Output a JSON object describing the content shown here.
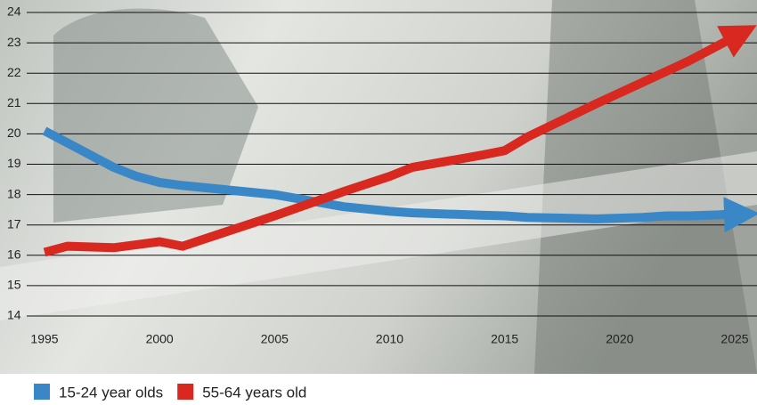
{
  "chart_data": {
    "type": "line",
    "x": [
      1995,
      1996,
      1998,
      1999,
      2000,
      2001,
      2003,
      2005,
      2008,
      2010,
      2011,
      2014,
      2015,
      2016,
      2019,
      2021,
      2022,
      2023,
      2025
    ],
    "series": [
      {
        "name": "15-24 year olds",
        "color": "#3a87c8",
        "values": [
          20.1,
          19.7,
          18.9,
          18.6,
          18.4,
          18.3,
          18.15,
          18.0,
          17.6,
          17.45,
          17.4,
          17.32,
          17.3,
          17.25,
          17.2,
          17.25,
          17.3,
          17.3,
          17.35
        ]
      },
      {
        "name": "55-64 years old",
        "color": "#d8281f",
        "values": [
          16.1,
          16.3,
          16.25,
          16.35,
          16.45,
          16.3,
          16.8,
          17.3,
          18.1,
          18.6,
          18.9,
          19.3,
          19.45,
          19.9,
          21.0,
          21.7,
          22.05,
          22.4,
          23.2
        ]
      }
    ],
    "xlim": [
      1995,
      2025
    ],
    "xticks": [
      1995,
      2000,
      2005,
      2010,
      2015,
      2020,
      2025
    ],
    "ylim": [
      14,
      24
    ],
    "yticks": [
      14,
      15,
      16,
      17,
      18,
      19,
      20,
      21,
      22,
      23,
      24
    ],
    "grid": true,
    "legend": "bottom"
  }
}
